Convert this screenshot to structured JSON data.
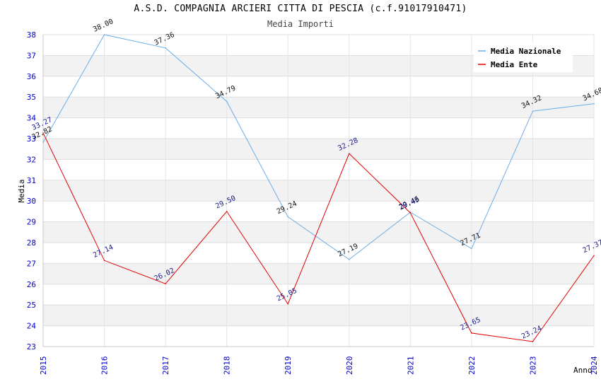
{
  "chart_data": {
    "type": "line",
    "title": "A.S.D. COMPAGNIA ARCIERI CITTA DI PESCIA (c.f.91017910471)",
    "subtitle": "Media Importi",
    "xlabel": "Anno",
    "ylabel": "Media",
    "ylim": [
      23,
      38
    ],
    "yticks": [
      "23",
      "24",
      "25",
      "26",
      "27",
      "28",
      "29",
      "30",
      "31",
      "32",
      "33",
      "34",
      "35",
      "36",
      "37",
      "38"
    ],
    "categories": [
      "2015",
      "2016",
      "2017",
      "2018",
      "2019",
      "2020",
      "2021",
      "2022",
      "2023",
      "2024"
    ],
    "legend_position": "top-right",
    "series": [
      {
        "name": "Media Nazionale",
        "color": "#6aaee8",
        "values": [
          32.82,
          38.0,
          37.36,
          34.79,
          29.24,
          27.19,
          29.46,
          27.71,
          34.32,
          34.68
        ],
        "labels": [
          "32.82",
          "38.00",
          "37.36",
          "34.79",
          "29.24",
          "27.19",
          "29.46",
          "27.71",
          "34.32",
          "34.68"
        ]
      },
      {
        "name": "Media Ente",
        "color": "#e00000",
        "values": [
          33.27,
          27.14,
          26.02,
          29.5,
          25.05,
          32.28,
          29.43,
          23.65,
          23.24,
          27.37
        ],
        "labels": [
          "33.27",
          "27.14",
          "26.02",
          "29.50",
          "25.05",
          "32.28",
          "29.43",
          "23.65",
          "23.24",
          "27.37"
        ]
      }
    ]
  }
}
